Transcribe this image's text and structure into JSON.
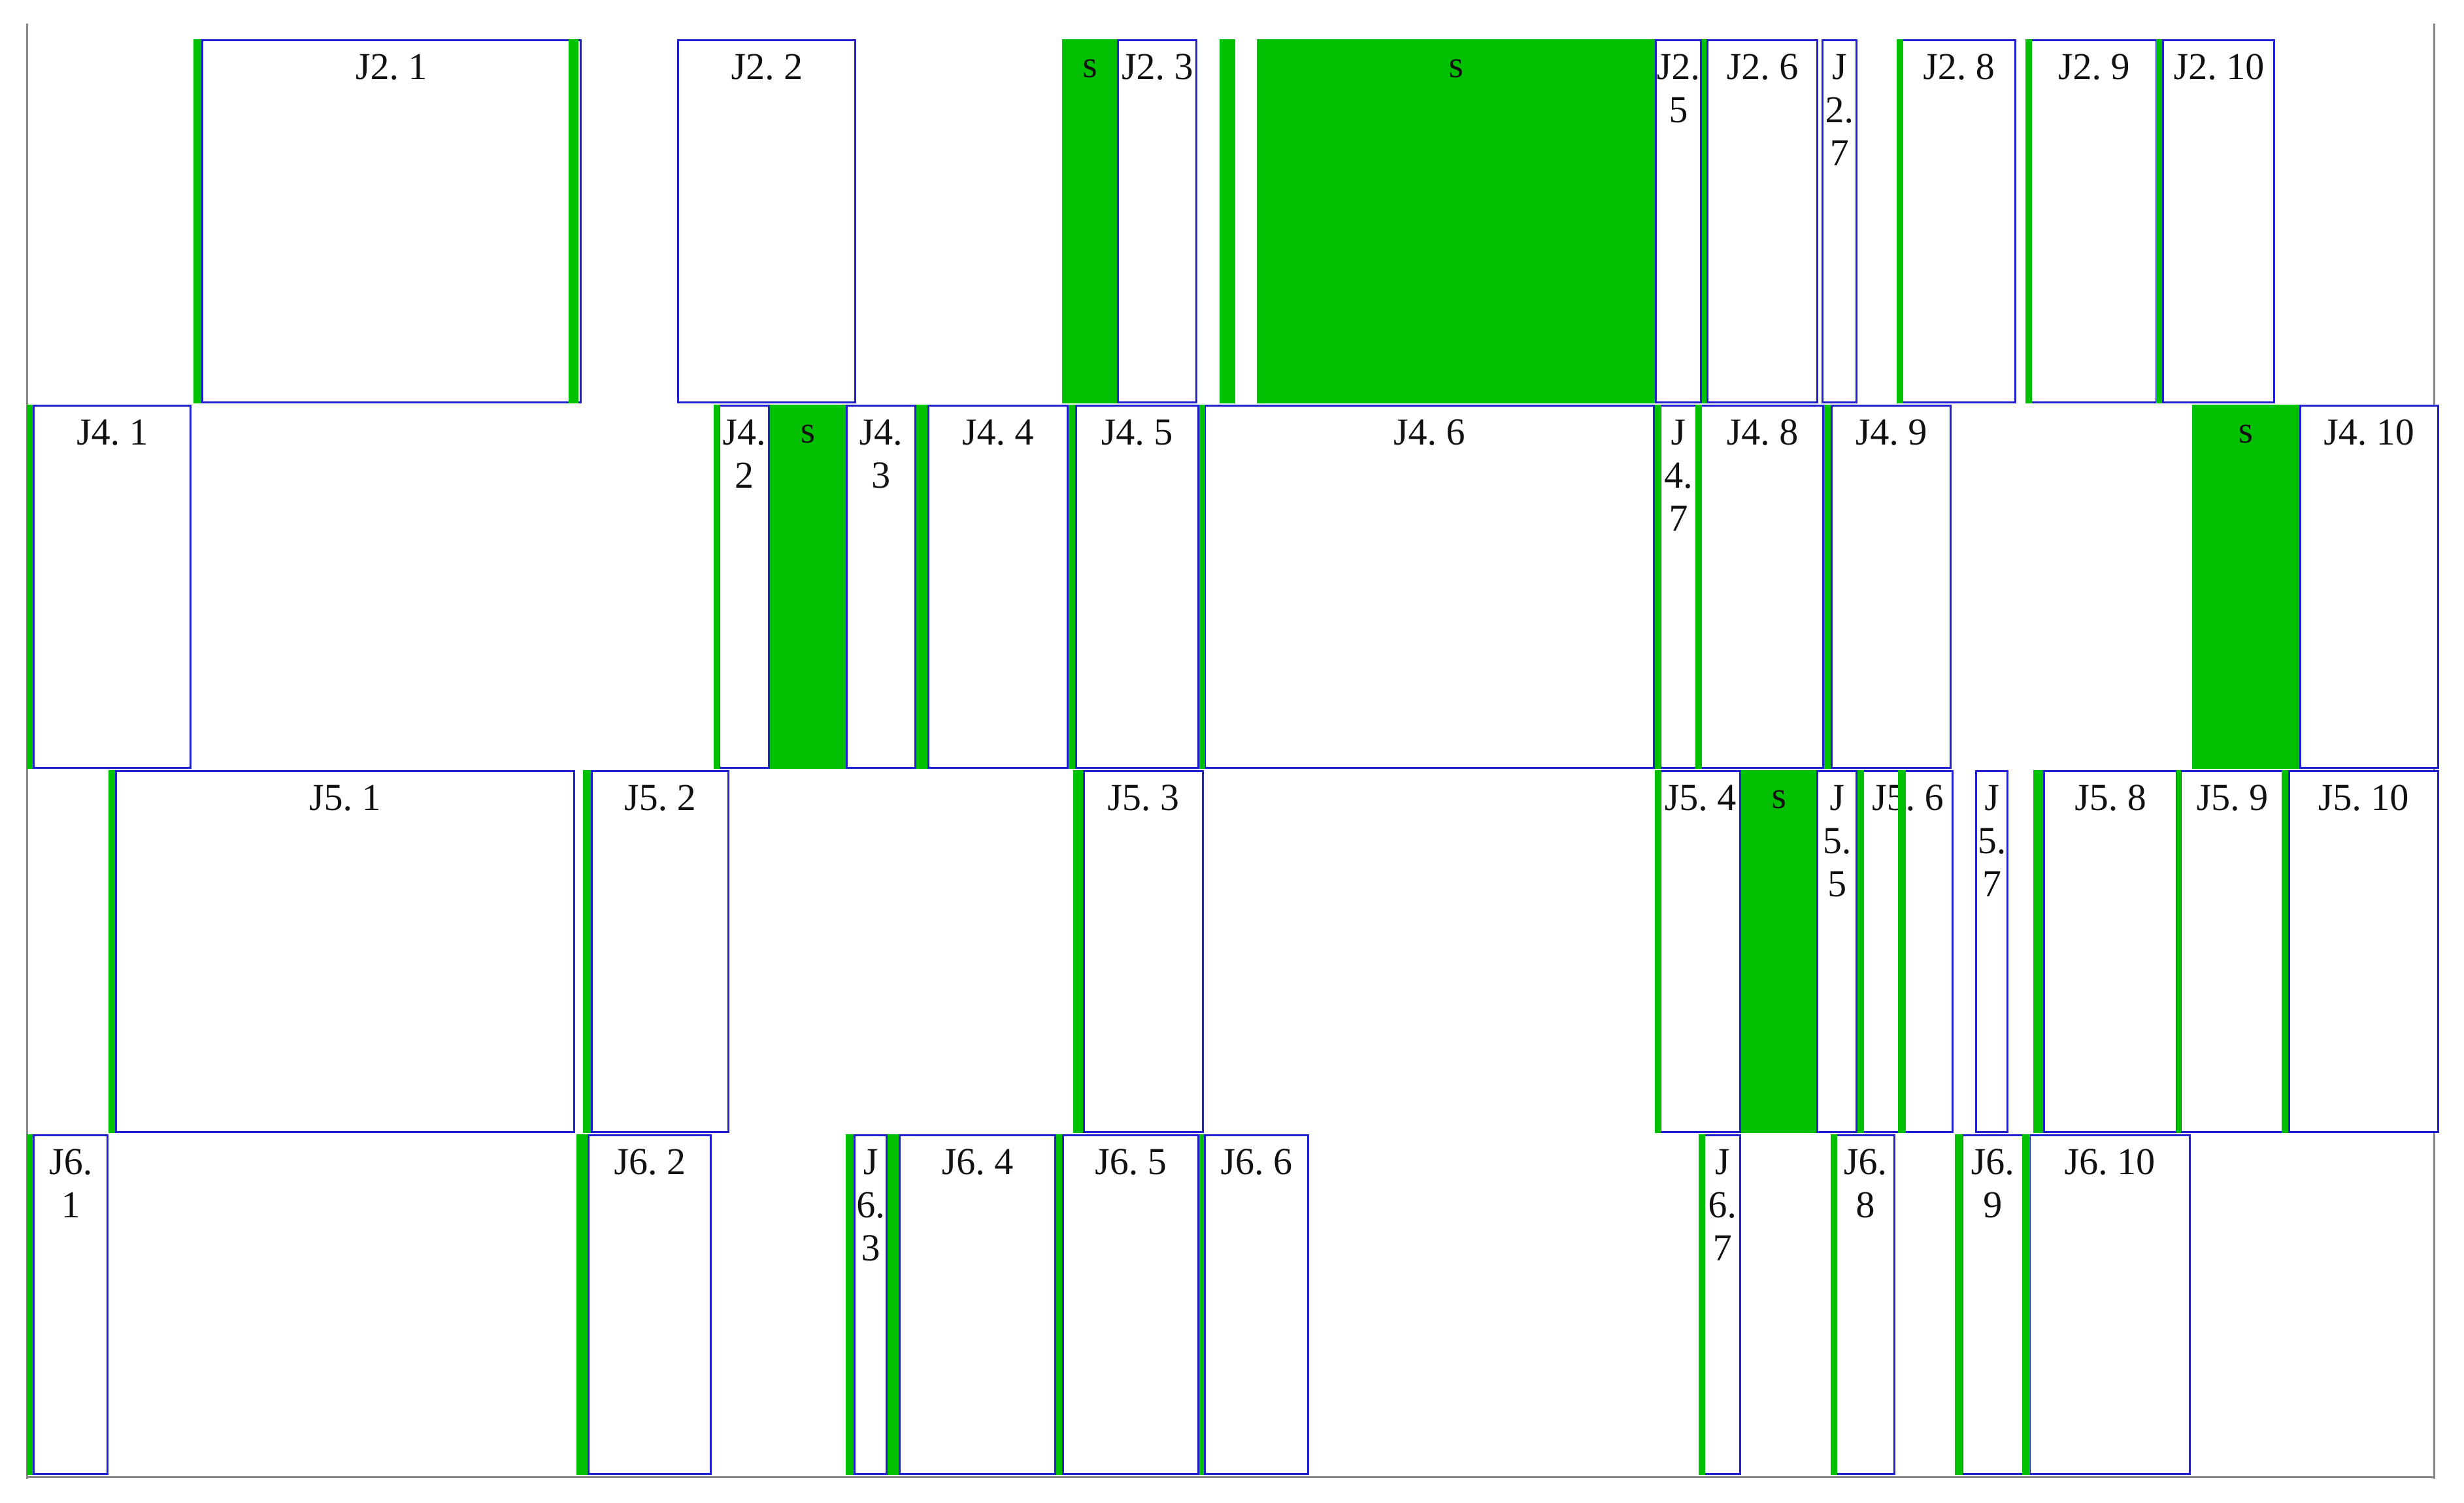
{
  "rows": [
    {
      "jobs": [
        "J2. 1",
        "J2. 2",
        "J2. 3",
        "J2. 5",
        "J2. 6",
        "J2. 7",
        "J2. 8",
        "J2. 9",
        "J2. 10"
      ],
      "setup_labels": [
        "s",
        "s"
      ]
    },
    {
      "jobs": [
        "J4. 1",
        "J4. 2",
        "J4. 3",
        "J4. 4",
        "J4. 5",
        "J4. 6",
        "J4. 7",
        "J4. 8",
        "J4. 9",
        "J4. 10"
      ],
      "setup_labels": [
        "s",
        "s"
      ]
    },
    {
      "jobs": [
        "J5. 1",
        "J5. 2",
        "J5. 3",
        "J5. 4",
        "J5. 5",
        "J5. 6",
        "J5. 7",
        "J5. 8",
        "J5. 9",
        "J5. 10"
      ],
      "setup_labels": [
        "s"
      ]
    },
    {
      "jobs": [
        "J6. 1",
        "J6. 2",
        "J6. 3",
        "J6. 4",
        "J6. 5",
        "J6. 6",
        "J6. 7",
        "J6. 8",
        "J6. 9",
        "J6. 10"
      ],
      "setup_labels": []
    }
  ]
}
